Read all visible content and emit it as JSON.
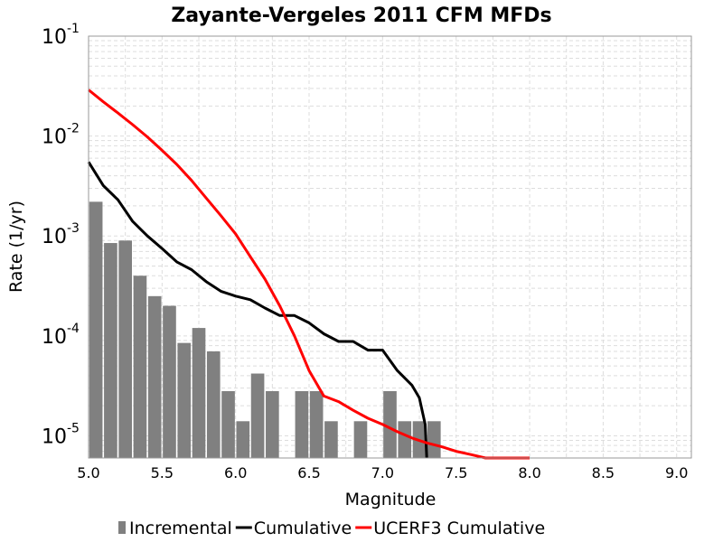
{
  "chart_data": {
    "type": "bar+line",
    "title": "Zayante-Vergeles 2011 CFM MFDs",
    "xlabel": "Magnitude",
    "ylabel": "Rate (1/yr)",
    "xlim": [
      5.0,
      9.1
    ],
    "ylim": [
      6e-06,
      0.1
    ],
    "yscale": "log",
    "grid": true,
    "legend_position": "bottom",
    "x_ticks": [
      "5.0",
      "5.5",
      "6.0",
      "6.5",
      "7.0",
      "7.5",
      "8.0",
      "8.5",
      "9.0"
    ],
    "y_ticks": [
      {
        "base": "10",
        "exp": "-5",
        "value": 1e-05
      },
      {
        "base": "10",
        "exp": "-4",
        "value": 0.0001
      },
      {
        "base": "10",
        "exp": "-3",
        "value": 0.001
      },
      {
        "base": "10",
        "exp": "-2",
        "value": 0.01
      },
      {
        "base": "10",
        "exp": "-1",
        "value": 0.1
      }
    ],
    "series": [
      {
        "name": "Incremental",
        "kind": "bar",
        "color": "#808080",
        "bar_width": 0.09,
        "x": [
          5.05,
          5.15,
          5.25,
          5.35,
          5.45,
          5.55,
          5.65,
          5.75,
          5.85,
          5.95,
          6.05,
          6.15,
          6.25,
          6.45,
          6.55,
          6.65,
          6.85,
          7.05,
          7.15,
          7.25,
          7.35
        ],
        "values": [
          0.0022,
          0.00085,
          0.0009,
          0.0004,
          0.00025,
          0.0002,
          8.5e-05,
          0.00012,
          7e-05,
          2.8e-05,
          1.4e-05,
          4.2e-05,
          2.8e-05,
          2.8e-05,
          2.8e-05,
          1.4e-05,
          1.4e-05,
          2.8e-05,
          1.4e-05,
          1.4e-05,
          1.4e-05
        ]
      },
      {
        "name": "Cumulative",
        "kind": "line",
        "color": "#000000",
        "x": [
          5.0,
          5.1,
          5.2,
          5.3,
          5.4,
          5.5,
          5.6,
          5.7,
          5.8,
          5.9,
          6.0,
          6.1,
          6.2,
          6.3,
          6.4,
          6.5,
          6.6,
          6.7,
          6.8,
          6.9,
          7.0,
          7.1,
          7.2,
          7.25,
          7.29,
          7.3
        ],
        "values": [
          0.0055,
          0.0032,
          0.0023,
          0.0014,
          0.001,
          0.00075,
          0.00055,
          0.00046,
          0.00035,
          0.00028,
          0.00025,
          0.00023,
          0.00019,
          0.00016,
          0.00016,
          0.000135,
          0.000105,
          8.8e-05,
          8.8e-05,
          7.2e-05,
          7.2e-05,
          4.5e-05,
          3.2e-05,
          2.4e-05,
          1.3e-05,
          6e-06
        ]
      },
      {
        "name": "UCERF3 Cumulative",
        "kind": "line",
        "color": "#ff0000",
        "x": [
          5.0,
          5.1,
          5.2,
          5.3,
          5.4,
          5.5,
          5.6,
          5.7,
          5.8,
          5.9,
          6.0,
          6.1,
          6.2,
          6.3,
          6.4,
          6.5,
          6.6,
          6.7,
          6.8,
          6.9,
          7.0,
          7.1,
          7.2,
          7.3,
          7.4,
          7.5,
          7.6,
          7.7,
          7.8,
          7.9,
          8.0
        ],
        "values": [
          0.029,
          0.022,
          0.017,
          0.013,
          0.0098,
          0.0072,
          0.0052,
          0.0036,
          0.0024,
          0.0016,
          0.00105,
          0.00062,
          0.00037,
          0.0002,
          0.0001,
          4.5e-05,
          2.5e-05,
          2.2e-05,
          1.8e-05,
          1.5e-05,
          1.3e-05,
          1.1e-05,
          9.5e-06,
          8.5e-06,
          7.8e-06,
          7e-06,
          6.5e-06,
          6e-06,
          5.8e-06,
          5.5e-06,
          6e-06
        ]
      }
    ]
  }
}
